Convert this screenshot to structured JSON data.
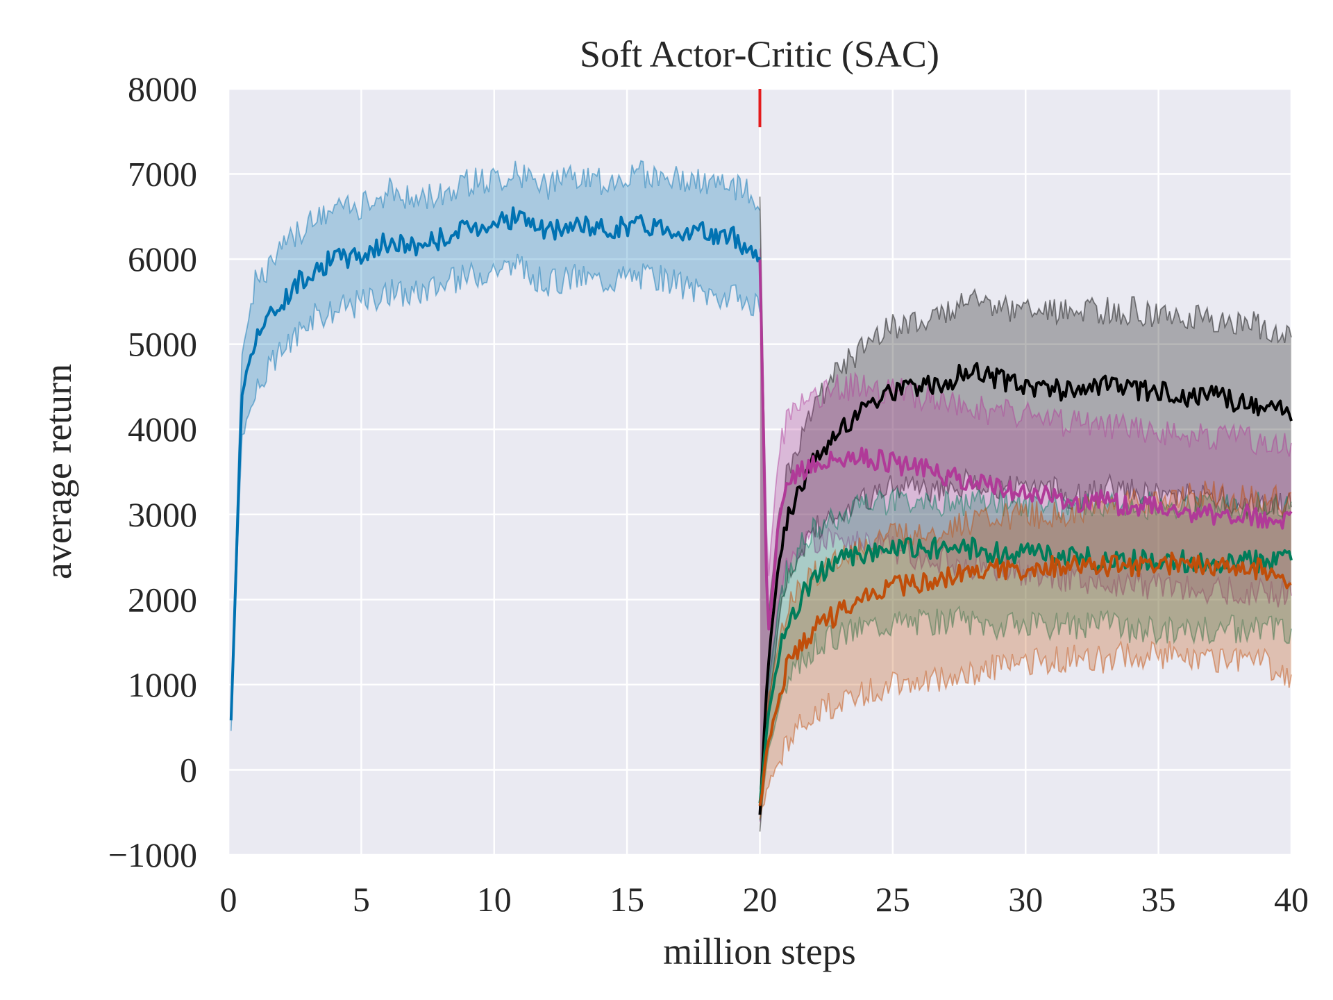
{
  "chart_data": {
    "type": "line",
    "title": "Soft Actor-Critic (SAC)",
    "xlabel": "million steps",
    "ylabel": "average return",
    "xlim": [
      0,
      40
    ],
    "ylim": [
      -1000,
      8000
    ],
    "xticks": [
      0,
      5,
      10,
      15,
      20,
      25,
      30,
      35,
      40
    ],
    "yticks": [
      -1000,
      0,
      1000,
      2000,
      3000,
      4000,
      5000,
      6000,
      7000,
      8000
    ],
    "ytick_labels": [
      "−1000",
      "0",
      "1000",
      "2000",
      "3000",
      "4000",
      "5000",
      "6000",
      "7000",
      "8000"
    ],
    "grid": true,
    "background": "#eaeaf2",
    "vline": {
      "x": 20,
      "y_range": [
        7550,
        8000
      ],
      "color": "#e41a1c"
    },
    "series": [
      {
        "color": "#0072b2",
        "x": [
          0.1,
          0.3,
          0.5,
          1,
          1.5,
          2,
          3,
          4,
          5,
          6,
          7,
          8,
          9,
          10,
          11,
          12,
          13,
          14,
          15,
          16,
          17,
          18,
          19,
          20
        ],
        "y": [
          550,
          2500,
          4400,
          5100,
          5300,
          5500,
          5850,
          6000,
          6050,
          6200,
          6150,
          6250,
          6350,
          6450,
          6500,
          6300,
          6400,
          6350,
          6400,
          6400,
          6350,
          6300,
          6250,
          6050
        ],
        "lower": [
          500,
          2200,
          3900,
          4400,
          4700,
          4900,
          5300,
          5400,
          5500,
          5600,
          5600,
          5700,
          5800,
          5900,
          5900,
          5700,
          5800,
          5750,
          5800,
          5800,
          5700,
          5600,
          5550,
          5400
        ],
        "upper": [
          600,
          2800,
          4900,
          5700,
          5900,
          6100,
          6400,
          6600,
          6600,
          6800,
          6700,
          6800,
          6900,
          6950,
          7000,
          6850,
          6950,
          6900,
          7000,
          7000,
          6950,
          6900,
          6850,
          6700
        ]
      },
      {
        "color": "#000000",
        "x": [
          20,
          20.3,
          20.7,
          21,
          21.5,
          22,
          23,
          24,
          25,
          26,
          27,
          28,
          29,
          30,
          31,
          32,
          33,
          34,
          35,
          36,
          37,
          38,
          39,
          40
        ],
        "y": [
          -500,
          1200,
          2400,
          2900,
          3300,
          3600,
          4000,
          4300,
          4450,
          4500,
          4550,
          4700,
          4600,
          4500,
          4500,
          4400,
          4500,
          4450,
          4450,
          4400,
          4400,
          4300,
          4250,
          4200
        ],
        "lower": [
          -750,
          700,
          1700,
          2200,
          2500,
          2800,
          3000,
          3200,
          3300,
          3300,
          3300,
          3400,
          3300,
          3300,
          3300,
          3200,
          3300,
          3300,
          3200,
          3200,
          3200,
          3100,
          3100,
          3100
        ],
        "upper": [
          6700,
          1700,
          3000,
          3500,
          3900,
          4300,
          4700,
          5000,
          5200,
          5300,
          5400,
          5550,
          5400,
          5400,
          5400,
          5350,
          5400,
          5400,
          5350,
          5350,
          5300,
          5250,
          5200,
          5150
        ]
      },
      {
        "color": "#b03a98",
        "x": [
          20,
          20.3,
          20.7,
          21,
          21.5,
          22,
          23,
          24,
          25,
          26,
          27,
          28,
          29,
          30,
          31,
          32,
          33,
          34,
          35,
          36,
          37,
          38,
          39,
          40
        ],
        "y": [
          6000,
          1500,
          2900,
          3300,
          3500,
          3600,
          3650,
          3650,
          3600,
          3550,
          3450,
          3400,
          3300,
          3250,
          3200,
          3150,
          3150,
          3100,
          3100,
          3050,
          3000,
          3000,
          2950,
          2950
        ],
        "lower": [
          -600,
          800,
          2000,
          2400,
          2600,
          2700,
          2700,
          2650,
          2600,
          2500,
          2450,
          2400,
          2350,
          2300,
          2250,
          2250,
          2200,
          2200,
          2150,
          2150,
          2100,
          2100,
          2100,
          2050
        ],
        "upper": [
          6100,
          2200,
          3700,
          4100,
          4300,
          4400,
          4500,
          4500,
          4450,
          4400,
          4300,
          4250,
          4200,
          4150,
          4100,
          4050,
          4050,
          4000,
          3950,
          3950,
          3900,
          3900,
          3850,
          3850
        ]
      },
      {
        "color": "#007c5a",
        "x": [
          20,
          20.3,
          20.7,
          21,
          21.5,
          22,
          23,
          24,
          25,
          26,
          27,
          28,
          29,
          30,
          31,
          32,
          33,
          34,
          35,
          36,
          37,
          38,
          39,
          40
        ],
        "y": [
          -400,
          600,
          1300,
          1700,
          2000,
          2250,
          2450,
          2550,
          2600,
          2600,
          2600,
          2600,
          2550,
          2550,
          2500,
          2500,
          2450,
          2450,
          2450,
          2450,
          2450,
          2450,
          2450,
          2450
        ],
        "lower": [
          -550,
          200,
          700,
          1000,
          1250,
          1450,
          1600,
          1700,
          1750,
          1750,
          1750,
          1750,
          1700,
          1700,
          1700,
          1700,
          1700,
          1650,
          1650,
          1650,
          1650,
          1650,
          1650,
          1650
        ],
        "upper": [
          -250,
          1000,
          1900,
          2300,
          2600,
          2800,
          3000,
          3100,
          3150,
          3150,
          3150,
          3150,
          3150,
          3100,
          3100,
          3100,
          3100,
          3100,
          3100,
          3100,
          3100,
          3100,
          3100,
          3100
        ]
      },
      {
        "color": "#c04e0a",
        "x": [
          20,
          20.3,
          20.7,
          21,
          21.5,
          22,
          23,
          24,
          25,
          26,
          27,
          28,
          29,
          30,
          31,
          32,
          33,
          34,
          35,
          36,
          37,
          38,
          39,
          40
        ],
        "y": [
          -450,
          300,
          800,
          1200,
          1450,
          1650,
          1850,
          2000,
          2150,
          2200,
          2250,
          2300,
          2350,
          2350,
          2400,
          2400,
          2400,
          2400,
          2400,
          2450,
          2400,
          2400,
          2350,
          2250
        ],
        "lower": [
          -600,
          -200,
          100,
          350,
          500,
          650,
          800,
          900,
          1000,
          1050,
          1100,
          1150,
          1200,
          1250,
          1300,
          1300,
          1300,
          1350,
          1350,
          1350,
          1300,
          1300,
          1250,
          1100
        ],
        "upper": [
          -300,
          800,
          1500,
          1900,
          2100,
          2300,
          2500,
          2650,
          2750,
          2800,
          2850,
          2900,
          2950,
          3000,
          3000,
          3050,
          3100,
          3150,
          3150,
          3200,
          3250,
          3200,
          3200,
          3150
        ]
      }
    ]
  }
}
